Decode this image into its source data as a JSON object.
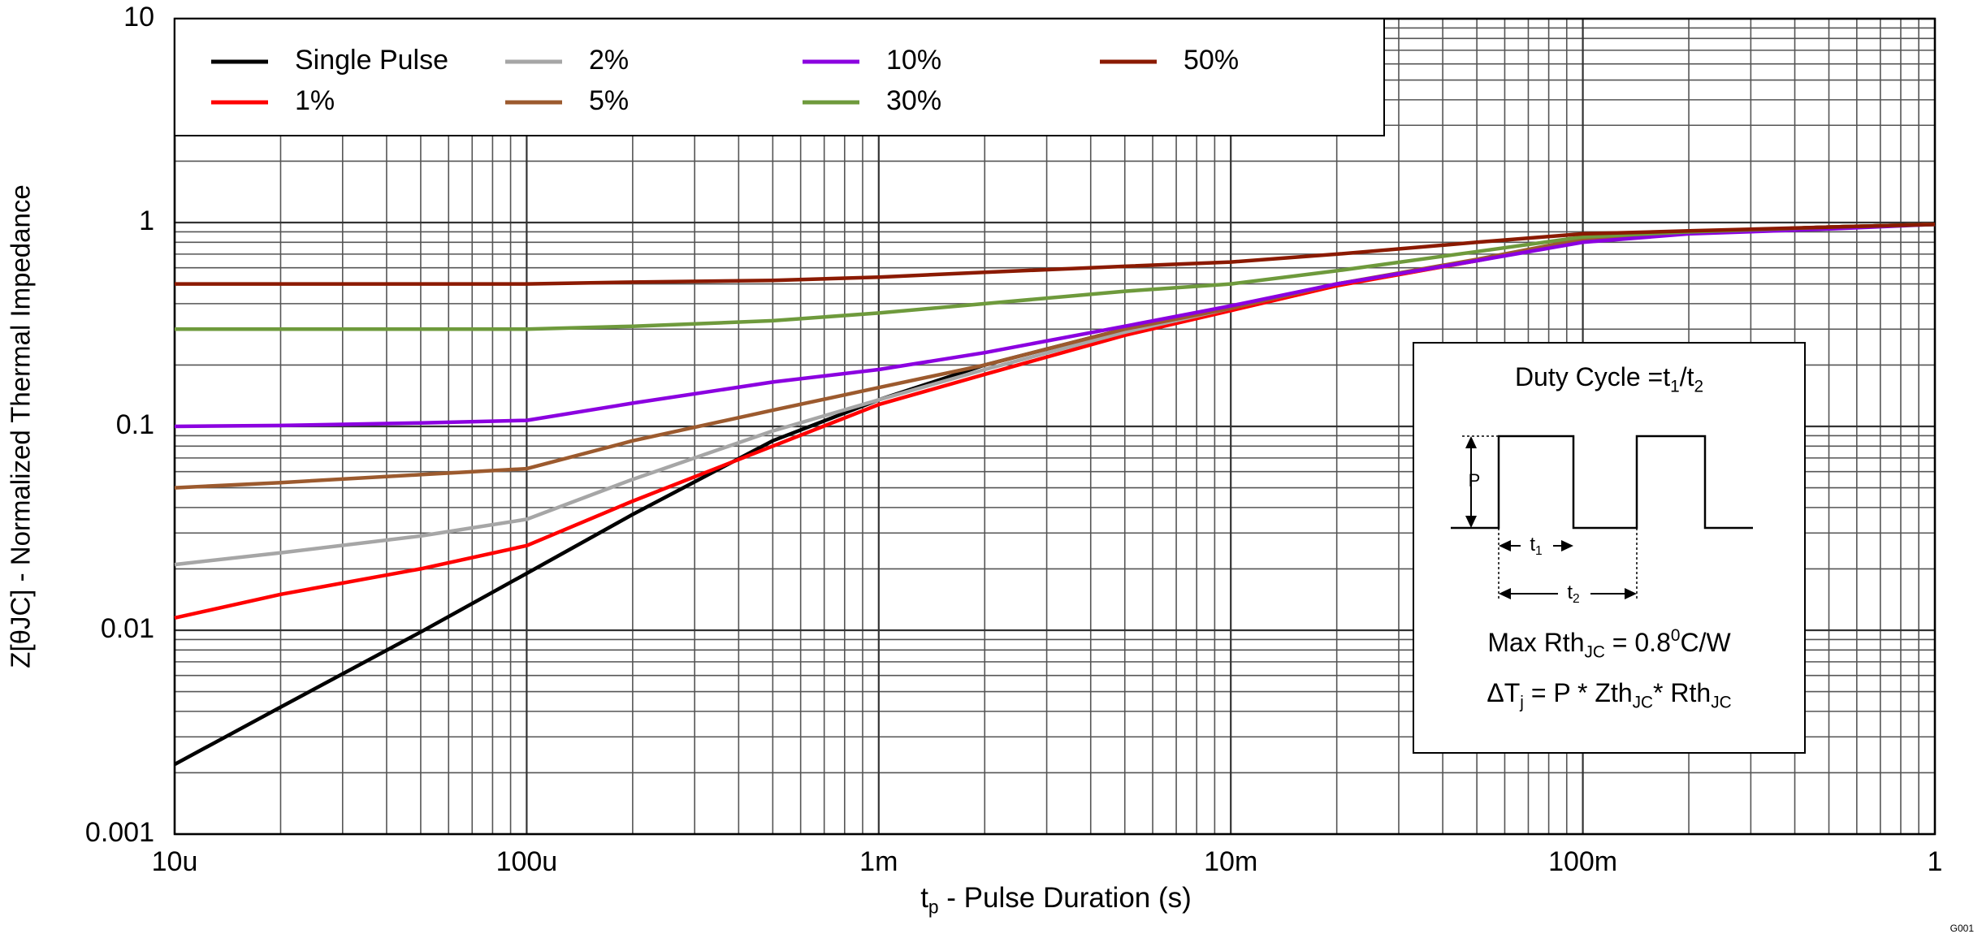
{
  "chart_data": {
    "type": "line",
    "log_x": true,
    "log_y": true,
    "grid": true,
    "minor_grid": true,
    "xlabel": [
      "t",
      {
        "sub": "p"
      },
      " - Pulse Duration (s)"
    ],
    "ylabel": "Z[θJC] - Normalized Thermal Impedance",
    "xlim": [
      1e-05,
      1
    ],
    "ylim": [
      0.001,
      10
    ],
    "xticks": [
      {
        "value": 1e-05,
        "label": "10u"
      },
      {
        "value": 0.0001,
        "label": "100u"
      },
      {
        "value": 0.001,
        "label": "1m"
      },
      {
        "value": 0.01,
        "label": "10m"
      },
      {
        "value": 0.1,
        "label": "100m"
      },
      1
    ],
    "yticks": [
      0.001,
      0.01,
      0.1,
      1,
      10
    ],
    "legend": "upper left",
    "x": [
      1e-05,
      2e-05,
      5e-05,
      0.0001,
      0.0002,
      0.0005,
      0.001,
      0.002,
      0.005,
      0.01,
      0.02,
      0.05,
      0.1,
      0.2,
      0.5,
      1
    ],
    "series": [
      {
        "name": "Single Pulse",
        "color": "#000000",
        "values": [
          0.0022,
          0.0042,
          0.0098,
          0.019,
          0.037,
          0.085,
          0.135,
          0.2,
          0.3,
          0.38,
          0.5,
          0.65,
          0.82,
          0.9,
          0.95,
          0.98
        ]
      },
      {
        "name": "1%",
        "color": "#ff0000",
        "values": [
          0.0115,
          0.015,
          0.02,
          0.026,
          0.043,
          0.08,
          0.128,
          0.18,
          0.28,
          0.37,
          0.49,
          0.65,
          0.82,
          0.9,
          0.95,
          0.98
        ]
      },
      {
        "name": "2%",
        "color": "#a6a6a6",
        "values": [
          0.021,
          0.024,
          0.029,
          0.035,
          0.055,
          0.095,
          0.135,
          0.19,
          0.29,
          0.38,
          0.5,
          0.65,
          0.82,
          0.9,
          0.95,
          0.98
        ]
      },
      {
        "name": "5%",
        "color": "#9c5a2e",
        "values": [
          0.05,
          0.053,
          0.058,
          0.062,
          0.085,
          0.12,
          0.155,
          0.2,
          0.3,
          0.38,
          0.5,
          0.66,
          0.83,
          0.9,
          0.95,
          0.98
        ]
      },
      {
        "name": "10%",
        "color": "#8b00e0",
        "values": [
          0.1,
          0.101,
          0.104,
          0.107,
          0.13,
          0.165,
          0.19,
          0.23,
          0.31,
          0.39,
          0.5,
          0.65,
          0.8,
          0.88,
          0.93,
          0.98
        ]
      },
      {
        "name": "30%",
        "color": "#6e9a3c",
        "values": [
          0.3,
          0.3,
          0.3,
          0.3,
          0.31,
          0.33,
          0.36,
          0.4,
          0.46,
          0.5,
          0.58,
          0.72,
          0.85,
          0.9,
          0.95,
          0.98
        ]
      },
      {
        "name": "50%",
        "color": "#8b1a00",
        "values": [
          0.5,
          0.5,
          0.5,
          0.5,
          0.51,
          0.52,
          0.54,
          0.57,
          0.61,
          0.64,
          0.7,
          0.8,
          0.88,
          0.91,
          0.95,
          0.98
        ]
      }
    ],
    "inset": {
      "duty_cycle": [
        "Duty Cycle =t",
        {
          "sub": "1"
        },
        "/t",
        {
          "sub": "2"
        }
      ],
      "p_label": "P",
      "t1_label": [
        "t",
        {
          "sub": "1"
        }
      ],
      "t2_label": [
        "t",
        {
          "sub": "2"
        }
      ],
      "max_rth": [
        "Max Rth",
        {
          "sub": "JC"
        },
        " = 0.8",
        {
          "sup": "0"
        },
        "C/W"
      ],
      "delta_tj": [
        "ΔT",
        {
          "sub": "j"
        },
        " = P * Zth",
        {
          "sub": "JC"
        },
        "* Rth",
        {
          "sub": "JC"
        }
      ]
    },
    "figure_id": "G001"
  }
}
